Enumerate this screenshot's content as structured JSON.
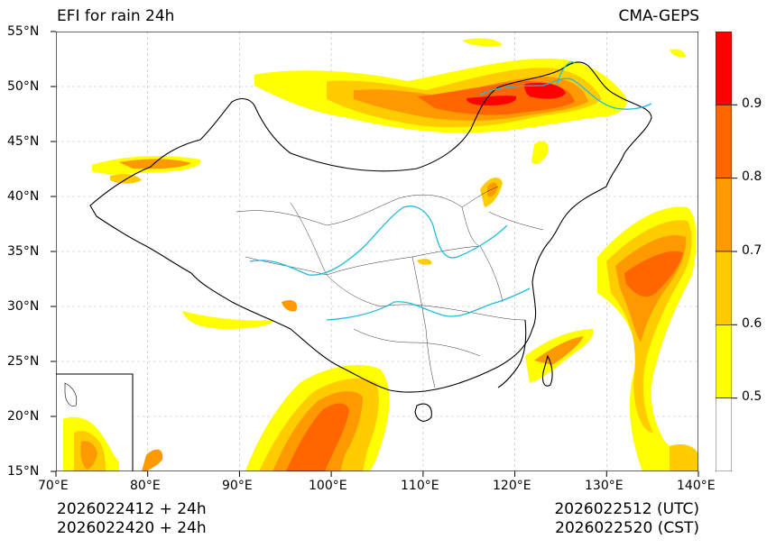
{
  "header": {
    "title_left": "EFI for rain 24h",
    "title_right": "CMA-GEPS"
  },
  "map": {
    "lon_range": [
      70,
      140
    ],
    "lat_range": [
      15,
      55
    ],
    "lon_ticks": [
      "70°E",
      "80°E",
      "90°E",
      "100°E",
      "110°E",
      "120°E",
      "130°E",
      "140°E"
    ],
    "lat_ticks": [
      "55°N",
      "50°N",
      "45°N",
      "40°N",
      "35°N",
      "30°N",
      "25°N",
      "20°N",
      "15°N"
    ],
    "gridlines": true
  },
  "colorbar": {
    "ticks": [
      "0.9",
      "0.8",
      "0.7",
      "0.6",
      "0.5"
    ],
    "levels": [
      {
        "min": 0.4,
        "max": 0.5,
        "color": "#ffffff"
      },
      {
        "min": 0.5,
        "max": 0.6,
        "color": "#ffff00"
      },
      {
        "min": 0.6,
        "max": 0.7,
        "color": "#ffcc00"
      },
      {
        "min": 0.7,
        "max": 0.8,
        "color": "#ff9900"
      },
      {
        "min": 0.8,
        "max": 0.9,
        "color": "#ff6600"
      },
      {
        "min": 0.9,
        "max": 1.0,
        "color": "#ff0000"
      }
    ]
  },
  "footer": {
    "left_line1": "2026022412 + 24h",
    "left_line2": "2026022420 + 24h",
    "right_line1": "2026022512 (UTC)",
    "right_line2": "2026022520 (CST)"
  }
}
